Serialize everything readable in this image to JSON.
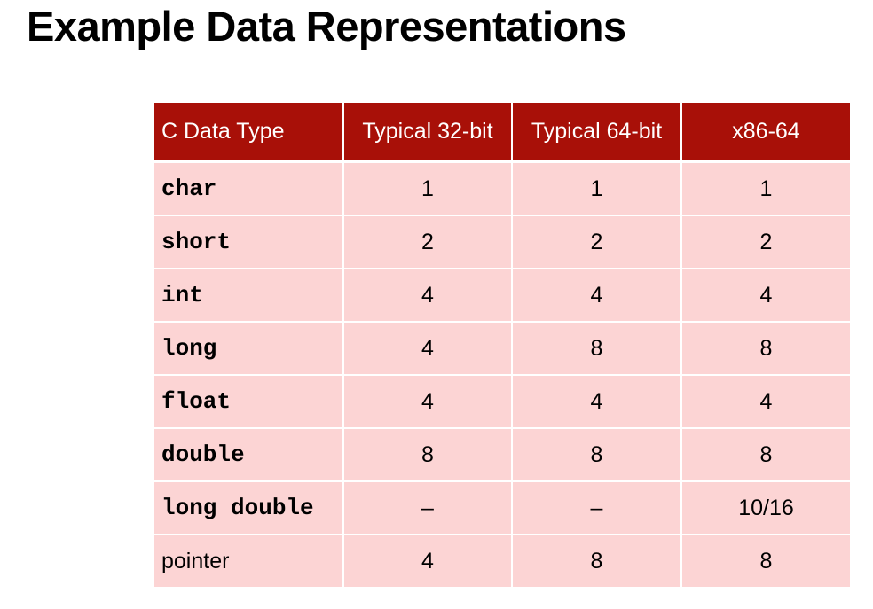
{
  "slide": {
    "title": "Example Data Representations"
  },
  "table": {
    "headers": [
      "C Data Type",
      "Typical 32-bit",
      "Typical 64-bit",
      "x86-64"
    ],
    "rows": [
      {
        "type": "char",
        "mono": true,
        "v32": "1",
        "v64": "1",
        "x8664": "1"
      },
      {
        "type": "short",
        "mono": true,
        "v32": "2",
        "v64": "2",
        "x8664": "2"
      },
      {
        "type": "int",
        "mono": true,
        "v32": "4",
        "v64": "4",
        "x8664": "4"
      },
      {
        "type": "long",
        "mono": true,
        "v32": "4",
        "v64": "8",
        "x8664": "8"
      },
      {
        "type": "float",
        "mono": true,
        "v32": "4",
        "v64": "4",
        "x8664": "4"
      },
      {
        "type": "double",
        "mono": true,
        "v32": "8",
        "v64": "8",
        "x8664": "8"
      },
      {
        "type": "long double",
        "mono": true,
        "v32": "–",
        "v64": "–",
        "x8664": "10/16"
      },
      {
        "type": "pointer",
        "mono": false,
        "v32": "4",
        "v64": "8",
        "x8664": "8"
      }
    ]
  },
  "colors": {
    "header_bg": "#a81008",
    "cell_bg": "#fcd4d4"
  }
}
